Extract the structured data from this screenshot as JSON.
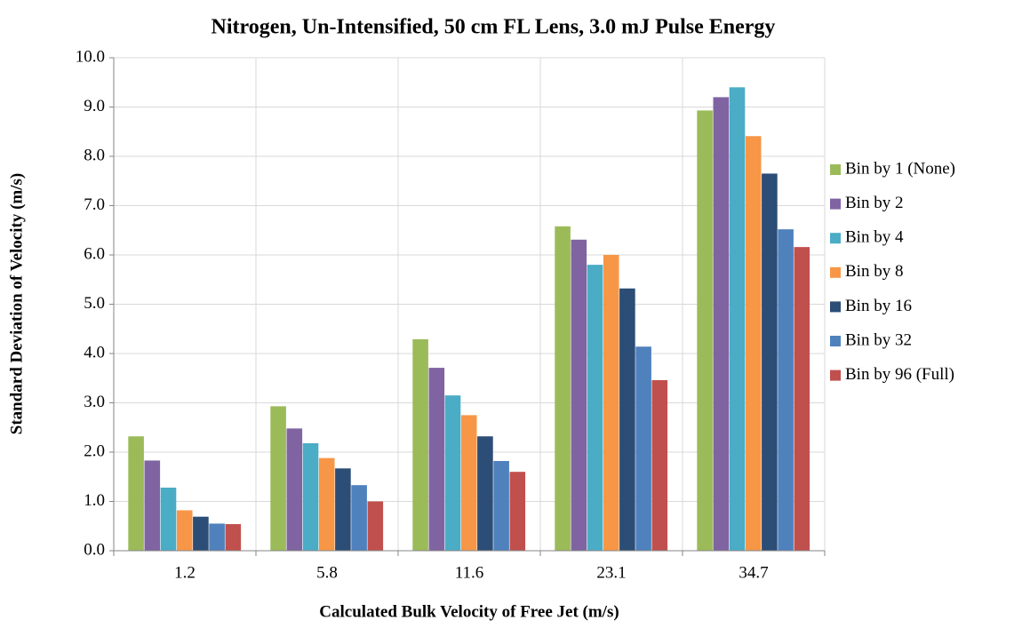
{
  "chart_data": {
    "type": "bar",
    "title": "Nitrogen, Un-Intensified, 50 cm FL Lens, 3.0 mJ Pulse Energy",
    "x_label": "Calculated Bulk Velocity of Free Jet (m/s)",
    "y_label": "Standard Deviation of Velocity (m/s)",
    "categories": [
      "1.2",
      "5.8",
      "11.6",
      "23.1",
      "34.7"
    ],
    "series": [
      {
        "name": "Bin by 1 (None)",
        "color": "#9bbb59",
        "values": [
          2.32,
          2.93,
          4.29,
          6.58,
          8.93
        ]
      },
      {
        "name": "Bin by 2",
        "color": "#8064a2",
        "values": [
          1.83,
          2.48,
          3.71,
          6.31,
          9.2
        ]
      },
      {
        "name": "Bin by 4",
        "color": "#4bacc6",
        "values": [
          1.28,
          2.18,
          3.15,
          5.8,
          9.4
        ]
      },
      {
        "name": "Bin by 8",
        "color": "#f79646",
        "values": [
          0.82,
          1.88,
          2.75,
          6.0,
          8.41
        ]
      },
      {
        "name": "Bin by 16",
        "color": "#2c4d75",
        "values": [
          0.69,
          1.67,
          2.32,
          5.32,
          7.65
        ]
      },
      {
        "name": "Bin by 32",
        "color": "#4f81bd",
        "values": [
          0.55,
          1.33,
          1.82,
          4.14,
          6.52
        ]
      },
      {
        "name": "Bin by 96 (Full)",
        "color": "#c0504d",
        "values": [
          0.54,
          1.0,
          1.6,
          3.46,
          6.16
        ]
      }
    ],
    "ylim": [
      0,
      10
    ],
    "yticks": [
      {
        "value": 0,
        "label": "0.0"
      },
      {
        "value": 1,
        "label": "1.0"
      },
      {
        "value": 2,
        "label": "2.0"
      },
      {
        "value": 3,
        "label": "3.0"
      },
      {
        "value": 4,
        "label": "4.0"
      },
      {
        "value": 5,
        "label": "5.0"
      },
      {
        "value": 6,
        "label": "6.0"
      },
      {
        "value": 7,
        "label": "7.0"
      },
      {
        "value": 8,
        "label": "8.0"
      },
      {
        "value": 9,
        "label": "9.0"
      },
      {
        "value": 10,
        "label": "10.0"
      }
    ],
    "grid": true,
    "legend": "right"
  }
}
